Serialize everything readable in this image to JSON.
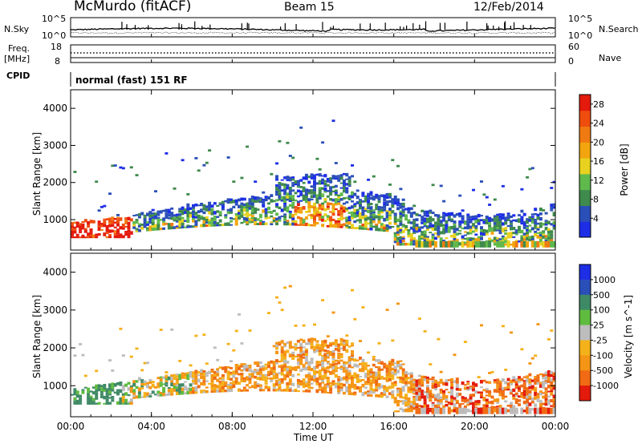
{
  "header": {
    "station": "McMurdo (fitACF)",
    "beam": "Beam 15",
    "date": "12/Feb/2014"
  },
  "sidebar_labels": {
    "nsky": "N.Sky",
    "freq": "Freq.",
    "freq_unit": "[MHz]",
    "cpid": "CPID",
    "nsearch": "N.Search",
    "nave": "Nave"
  },
  "aux_ticks": {
    "noise_left_top": "10^5",
    "noise_left_bottom": "10^0",
    "noise_right_top": "10^5",
    "noise_right_bottom": "10^0",
    "freq_left_top": "18",
    "freq_left_bottom": "8",
    "nave_right_top": "60",
    "nave_right_bottom": "0"
  },
  "cpid_text": "normal (fast) 151 RF",
  "colors": {
    "power": [
      "#1d2ee6",
      "#2b4fb8",
      "#3f8a4d",
      "#5fb94c",
      "#e8d21f",
      "#f2a50f",
      "#f07a12",
      "#ef4d0e",
      "#e41a0c"
    ],
    "velocity": [
      "#1d2ee6",
      "#2b4fb8",
      "#3f8a66",
      "#5fbc3f",
      "#bdbdbd",
      "#f5b11a",
      "#f59515",
      "#f06b14",
      "#e41a0c"
    ]
  },
  "chart_data": [
    {
      "type": "heatmap",
      "title": "",
      "xlabel": "Time UT",
      "ylabel": "Slant Range [km]",
      "x_ticks": [
        "00:00",
        "04:00",
        "08:00",
        "12:00",
        "16:00",
        "20:00",
        "00:00"
      ],
      "y_ticks": [
        "1000",
        "2000",
        "3000",
        "4000"
      ],
      "xlim": [
        0,
        24
      ],
      "ylim": [
        180,
        4500
      ],
      "colorbar": {
        "label": "Power [dB]",
        "ticks": [
          "4",
          "8",
          "12",
          "16",
          "20",
          "24",
          "28"
        ],
        "range": [
          0,
          30
        ]
      }
    },
    {
      "type": "heatmap",
      "title": "",
      "xlabel": "Time UT",
      "ylabel": "Slant Range [km]",
      "x_ticks": [
        "00:00",
        "04:00",
        "08:00",
        "12:00",
        "16:00",
        "20:00",
        "00:00"
      ],
      "y_ticks": [
        "1000",
        "2000",
        "3000",
        "4000"
      ],
      "xlim": [
        0,
        24
      ],
      "ylim": [
        180,
        4500
      ],
      "colorbar": {
        "label": "Velocity [m s^-1]",
        "ticks": [
          "1000",
          "500",
          "100",
          "25",
          "-25",
          "-100",
          "-500",
          "-1000"
        ],
        "range": [
          -1000,
          1000
        ]
      }
    }
  ]
}
